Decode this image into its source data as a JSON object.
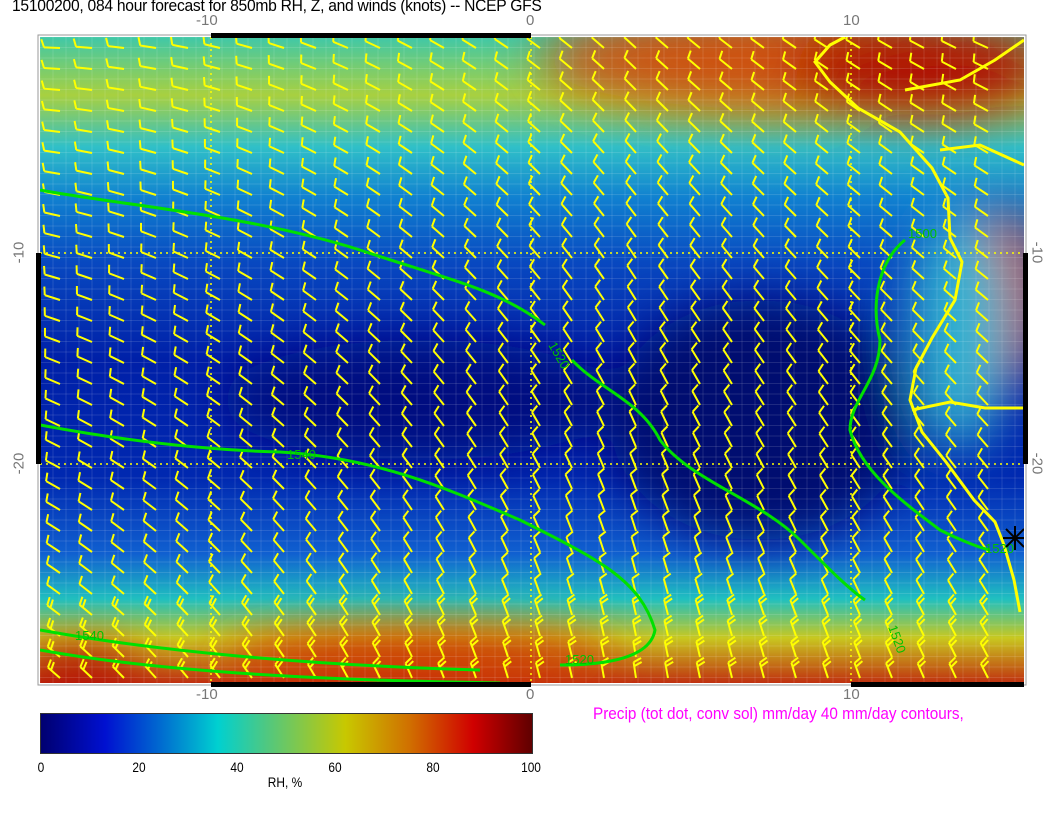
{
  "title": "15100200, 084 hour forecast for 850mb RH, Z, and winds (knots)  -- NCEP GFS",
  "map": {
    "lon_ticks": [
      "-10",
      "0",
      "10"
    ],
    "lat_ticks": [
      "-10",
      "-20"
    ],
    "lon_range": [
      -15.3,
      15.4
    ],
    "lat_range": [
      0.2,
      -30.4
    ],
    "field": "RH",
    "contour_labels": [
      "1500",
      "1520",
      "1540",
      "1540",
      "1520",
      "1520",
      "1520"
    ],
    "contour_color": "#00e000",
    "wind_barb_color": "#ffff00",
    "coastline_color": "#ffff00"
  },
  "colorbar": {
    "labels": [
      "0",
      "20",
      "40",
      "60",
      "80",
      "100"
    ],
    "title": "RH, %",
    "range": [
      0,
      100
    ]
  },
  "precip_note": "Precip (tot dot, conv sol) mm/day 40 mm/day contours,"
}
